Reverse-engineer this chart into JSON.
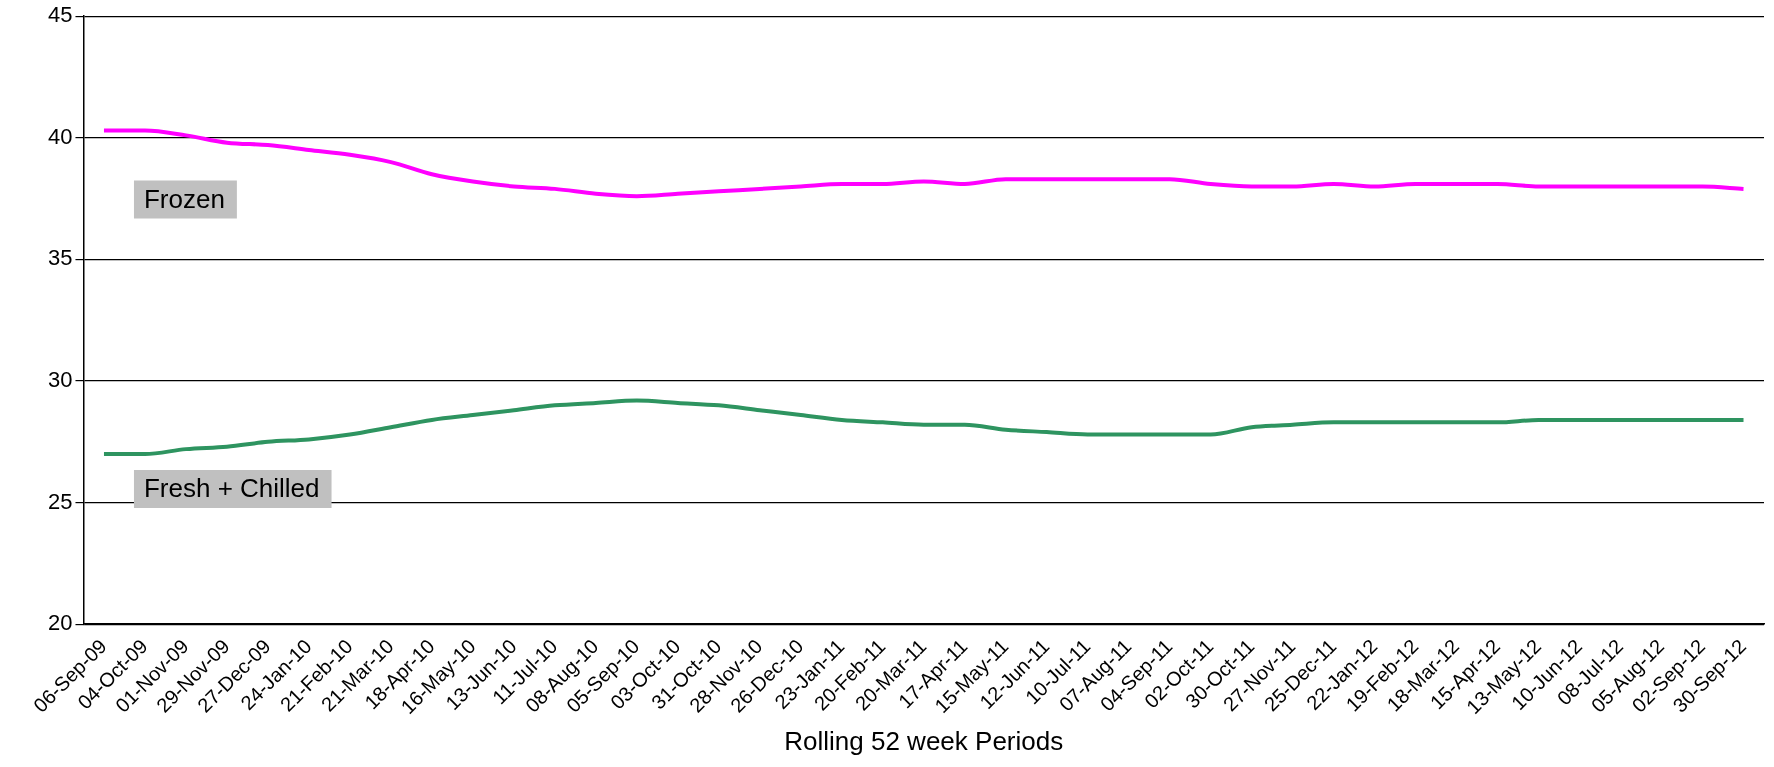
{
  "chart_data": {
    "type": "line",
    "xlabel": "Rolling 52 week Periods",
    "categories": [
      "06-Sep-09",
      "04-Oct-09",
      "01-Nov-09",
      "29-Nov-09",
      "27-Dec-09",
      "24-Jan-10",
      "21-Feb-10",
      "21-Mar-10",
      "18-Apr-10",
      "16-May-10",
      "13-Jun-10",
      "11-Jul-10",
      "08-Aug-10",
      "05-Sep-10",
      "03-Oct-10",
      "31-Oct-10",
      "28-Nov-10",
      "26-Dec-10",
      "23-Jan-11",
      "20-Feb-11",
      "20-Mar-11",
      "17-Apr-11",
      "15-May-11",
      "12-Jun-11",
      "10-Jul-11",
      "07-Aug-11",
      "04-Sep-11",
      "02-Oct-11",
      "30-Oct-11",
      "27-Nov-11",
      "25-Dec-11",
      "22-Jan-12",
      "19-Feb-12",
      "18-Mar-12",
      "15-Apr-12",
      "13-May-12",
      "10-Jun-12",
      "08-Jul-12",
      "05-Aug-12",
      "02-Sep-12",
      "30-Sep-12"
    ],
    "series": [
      {
        "name": "Frozen",
        "color": "#ff00ff",
        "values": [
          40.3,
          40.3,
          40.1,
          39.8,
          39.7,
          39.5,
          39.3,
          39.0,
          38.5,
          38.2,
          38.0,
          37.9,
          37.7,
          37.6,
          37.7,
          37.8,
          37.9,
          38.0,
          38.1,
          38.1,
          38.2,
          38.1,
          38.3,
          38.3,
          38.3,
          38.3,
          38.3,
          38.1,
          38.0,
          38.0,
          38.1,
          38.0,
          38.1,
          38.1,
          38.1,
          38.0,
          38.0,
          38.0,
          38.0,
          38.0,
          37.9
        ]
      },
      {
        "name": "Fresh + Chilled",
        "color": "#2e9460",
        "values": [
          27.0,
          27.0,
          27.2,
          27.3,
          27.5,
          27.6,
          27.8,
          28.1,
          28.4,
          28.6,
          28.8,
          29.0,
          29.1,
          29.2,
          29.1,
          29.0,
          28.8,
          28.6,
          28.4,
          28.3,
          28.2,
          28.2,
          28.0,
          27.9,
          27.8,
          27.8,
          27.8,
          27.8,
          28.1,
          28.2,
          28.3,
          28.3,
          28.3,
          28.3,
          28.3,
          28.4,
          28.4,
          28.4,
          28.4,
          28.4,
          28.4
        ]
      }
    ],
    "ylim": [
      20,
      45
    ],
    "yticks": [
      20,
      25,
      30,
      35,
      40,
      45
    ],
    "grid": "y",
    "legend": false,
    "marker": "none",
    "line_style": "solid"
  }
}
